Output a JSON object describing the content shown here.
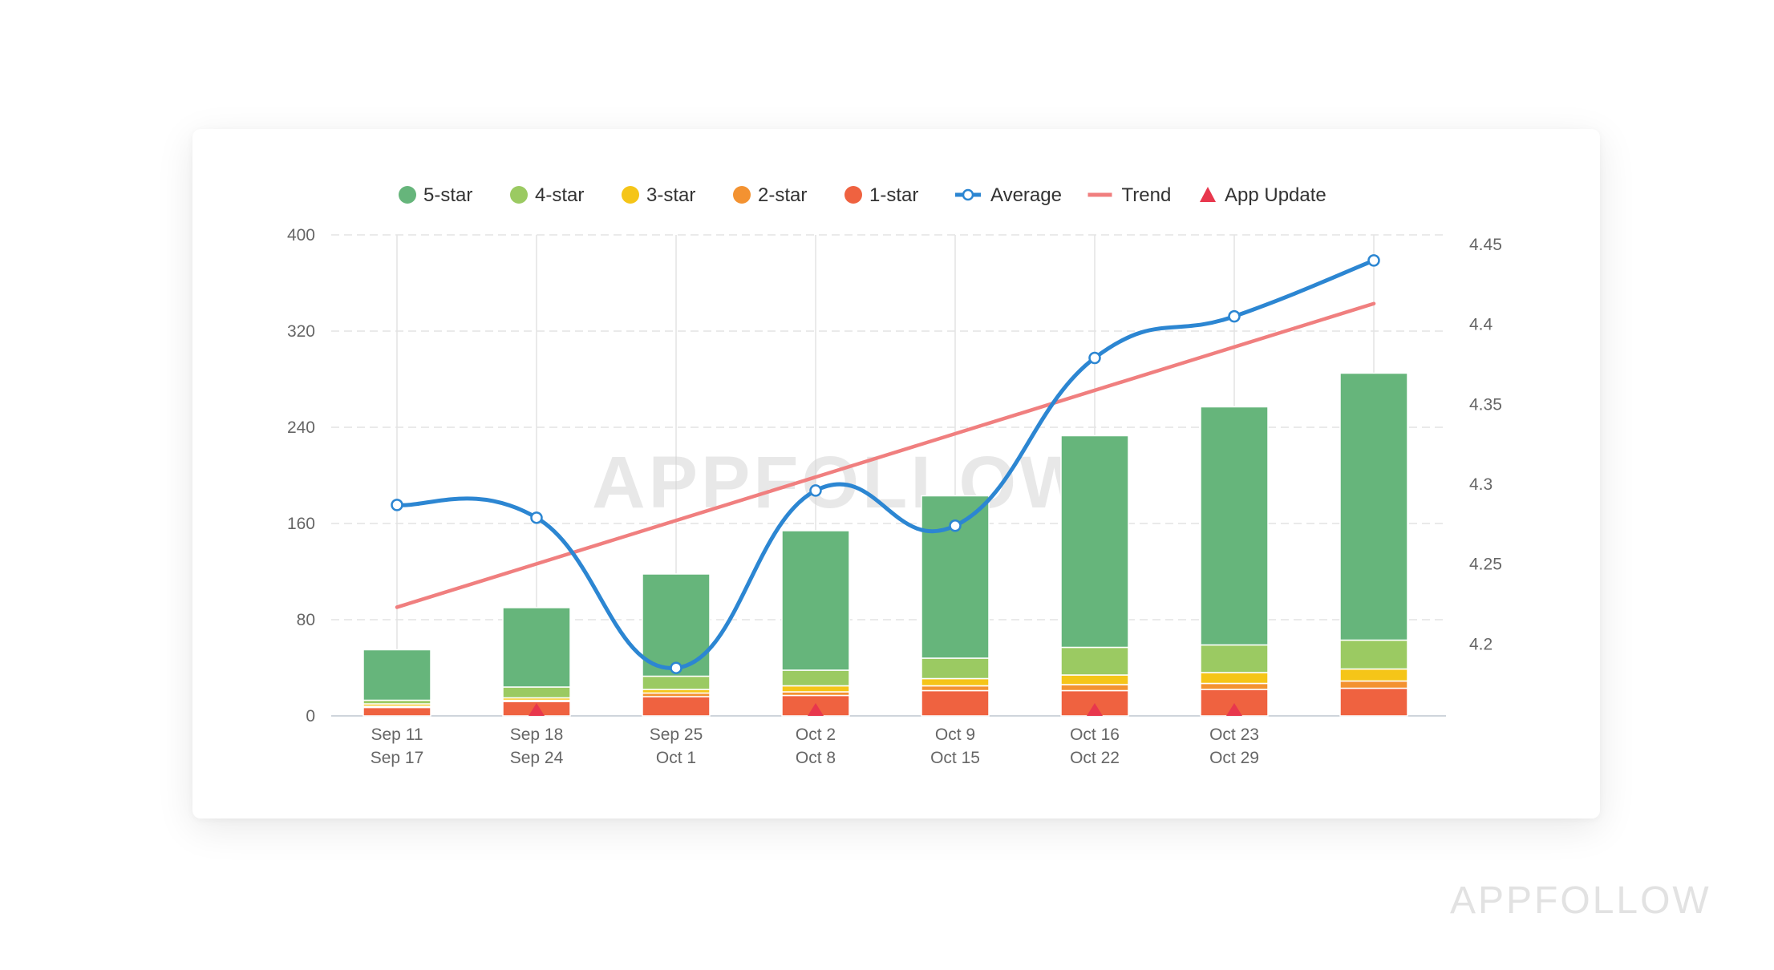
{
  "watermark": "APPFOLLOW",
  "colors": {
    "five_star": "#66b57b",
    "four_star": "#9bca62",
    "three_star": "#f5c518",
    "two_star": "#f39231",
    "one_star": "#ef6240",
    "average": "#2c86d2",
    "trend": "#f07f7f",
    "app_update": "#e8374d",
    "grid": "#e3e3e3"
  },
  "chart_data": {
    "type": "bar",
    "stacked": true,
    "title": "",
    "legend": {
      "placement": "top",
      "items": [
        {
          "label": "5-star",
          "marker": "circle",
          "color": "#66b57b"
        },
        {
          "label": "4-star",
          "marker": "circle",
          "color": "#9bca62"
        },
        {
          "label": "3-star",
          "marker": "circle",
          "color": "#f5c518"
        },
        {
          "label": "2-star",
          "marker": "circle",
          "color": "#f39231"
        },
        {
          "label": "1-star",
          "marker": "circle",
          "color": "#ef6240"
        },
        {
          "label": "Average",
          "marker": "line-dot",
          "color": "#2c86d2"
        },
        {
          "label": "Trend",
          "marker": "line",
          "color": "#f07f7f"
        },
        {
          "label": "App Update",
          "marker": "triangle",
          "color": "#e8374d"
        }
      ]
    },
    "categories": [
      [
        "Sep 11",
        "Sep 17"
      ],
      [
        "Sep 18",
        "Sep 24"
      ],
      [
        "Sep 25",
        "Oct 1"
      ],
      [
        "Oct 2",
        "Oct 8"
      ],
      [
        "Oct 9",
        "Oct 15"
      ],
      [
        "Oct 16",
        "Oct 22"
      ],
      [
        "Oct 23",
        "Oct 29"
      ],
      [
        "",
        ""
      ]
    ],
    "series": [
      {
        "name": "1-star",
        "values": [
          7,
          12,
          16,
          17,
          21,
          21,
          22,
          23
        ],
        "color": "#ef6240"
      },
      {
        "name": "2-star",
        "values": [
          1,
          1,
          3,
          3,
          4,
          5,
          5,
          6
        ],
        "color": "#f39231"
      },
      {
        "name": "3-star",
        "values": [
          2,
          2,
          3,
          5,
          6,
          8,
          9,
          10
        ],
        "color": "#f5c518"
      },
      {
        "name": "4-star",
        "values": [
          3,
          9,
          11,
          13,
          17,
          23,
          23,
          24
        ],
        "color": "#9bca62"
      },
      {
        "name": "5-star",
        "values": [
          42,
          66,
          85,
          116,
          135,
          176,
          198,
          222
        ],
        "color": "#66b57b"
      }
    ],
    "y_left": {
      "ticks": [
        0,
        80,
        160,
        240,
        320,
        400
      ],
      "ylim": [
        0,
        400
      ]
    },
    "y_right": {
      "ticks": [
        4.2,
        4.25,
        4.3,
        4.35,
        4.4,
        4.45
      ],
      "ylim": [
        4.155,
        4.456
      ]
    },
    "average": {
      "name": "Average",
      "values": [
        4.287,
        4.279,
        4.185,
        4.296,
        4.274,
        4.379,
        4.405,
        4.44
      ]
    },
    "trend": {
      "name": "Trend",
      "start": 4.223,
      "end": 4.413
    },
    "app_updates": [
      1,
      3,
      5,
      6
    ],
    "grid": true,
    "watermark_text": "APPFOLLOW"
  }
}
